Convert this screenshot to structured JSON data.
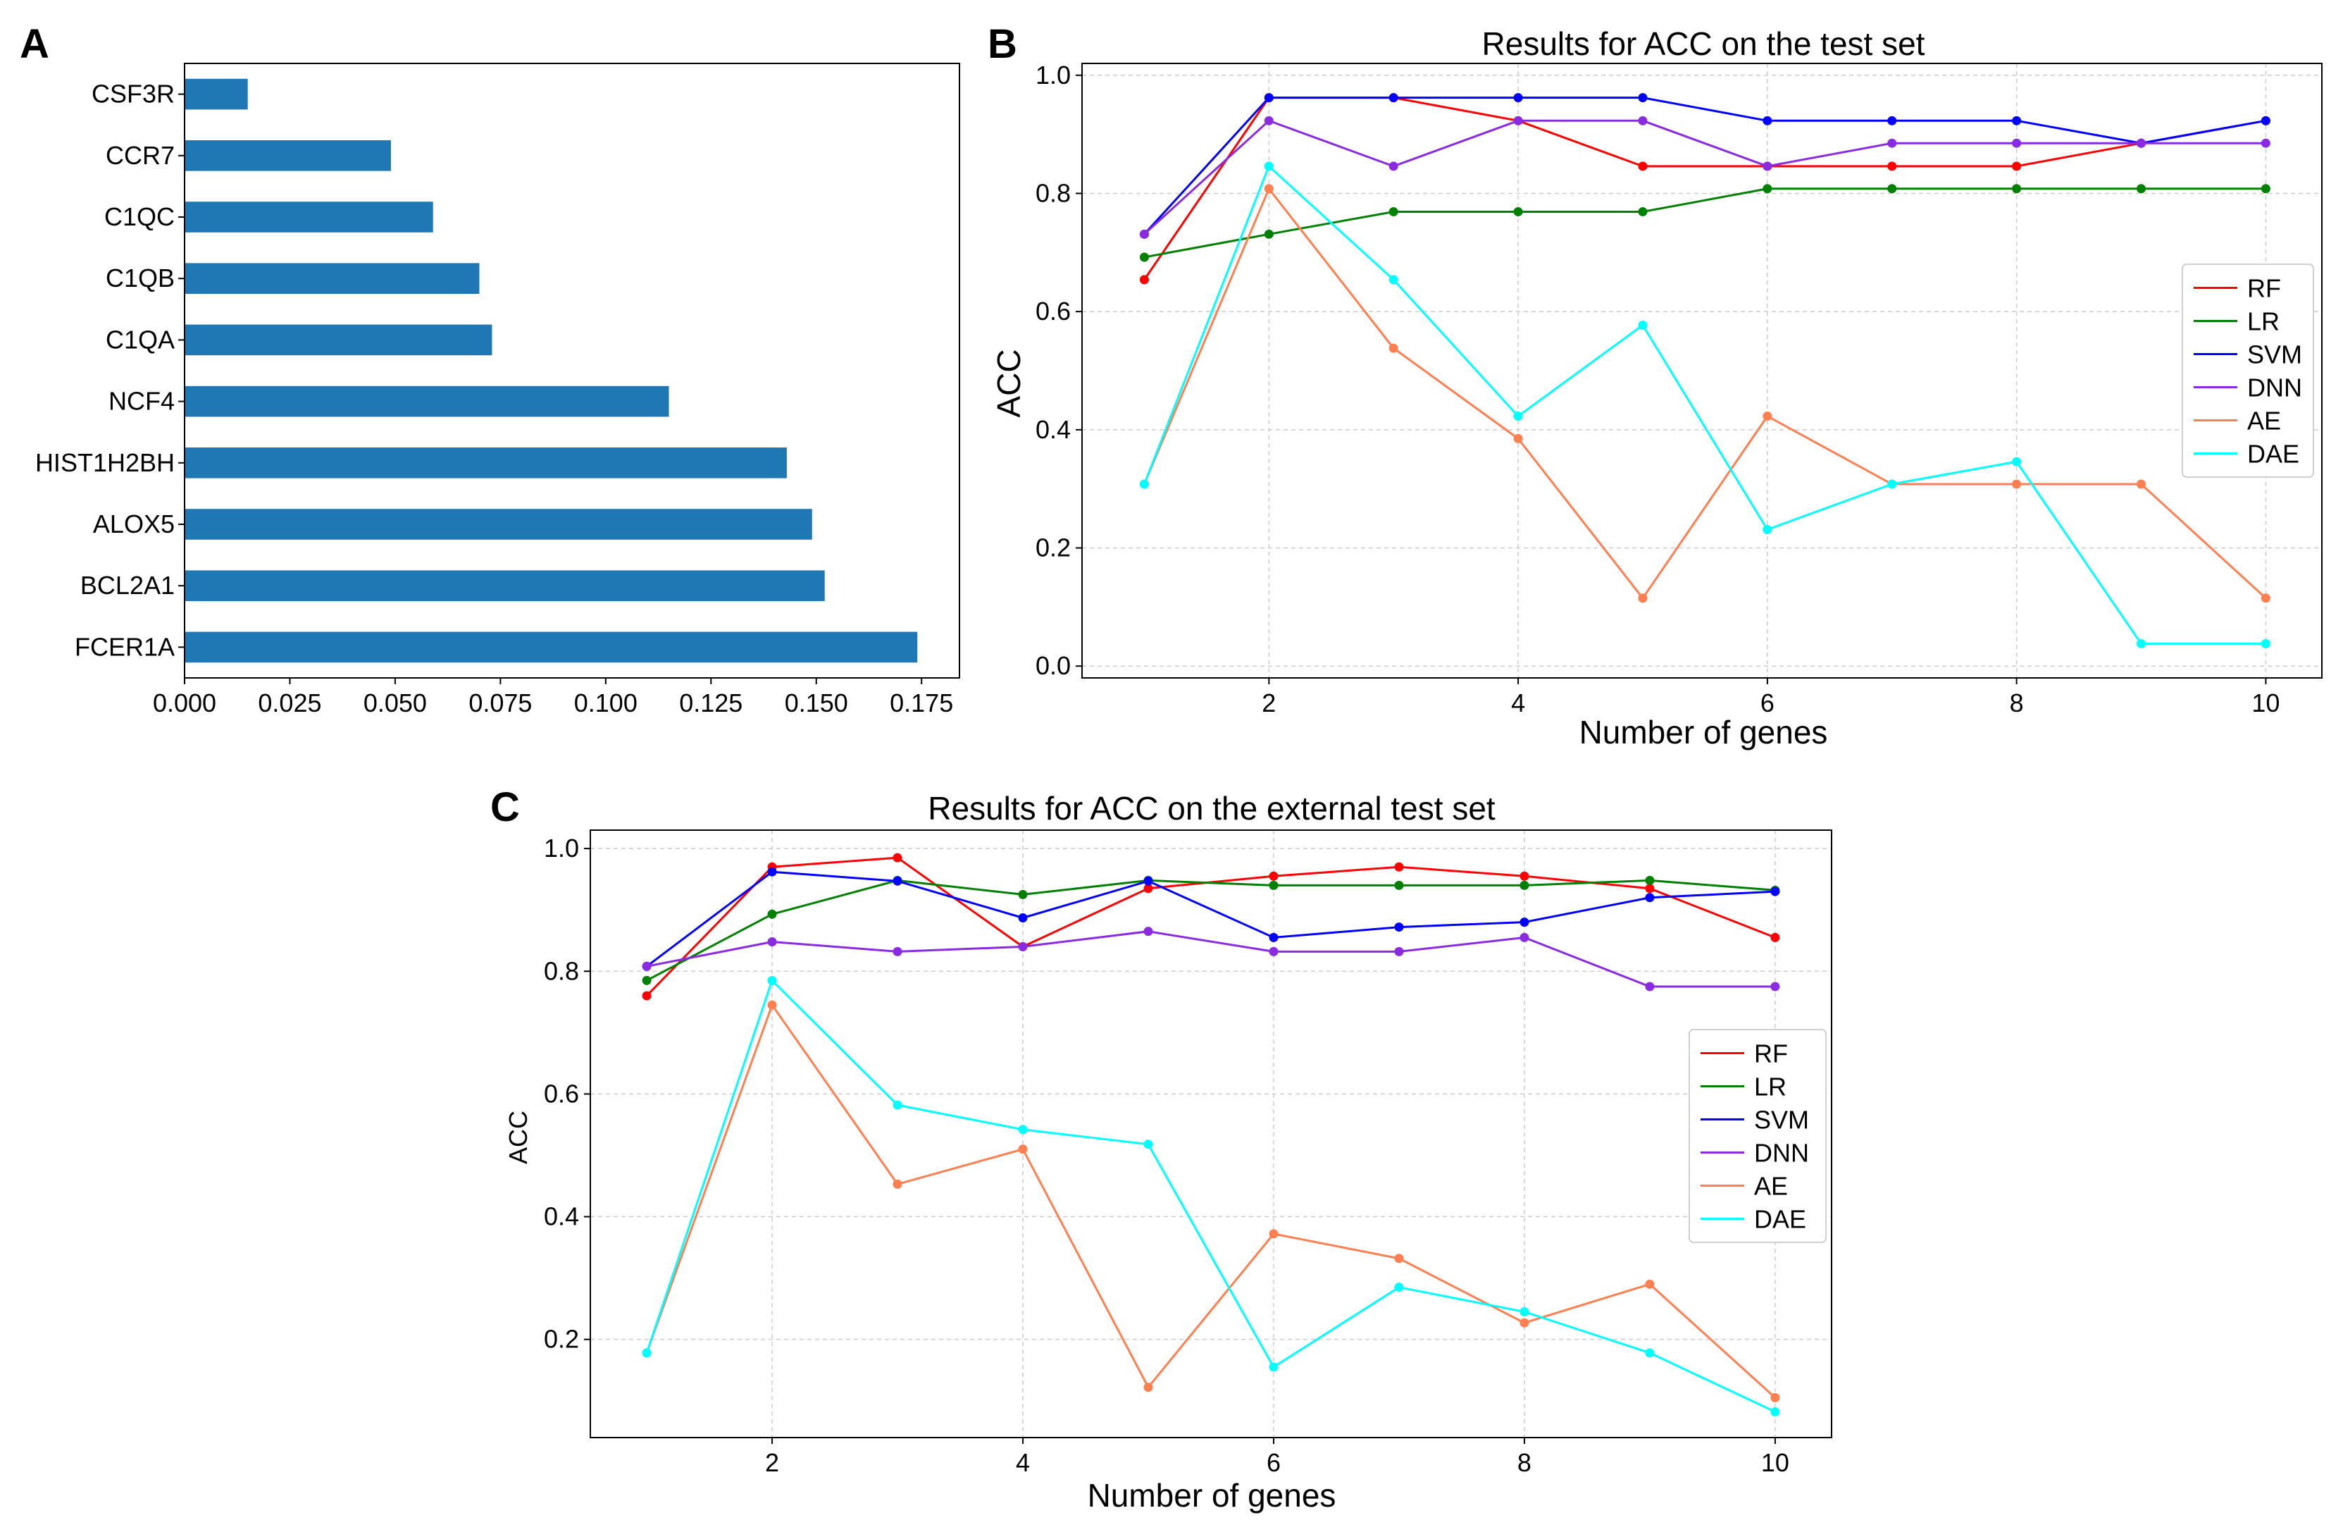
{
  "panels": {
    "a": "A",
    "b": "B",
    "c": "C"
  },
  "chart_data": [
    {
      "panel": "A",
      "type": "bar",
      "orientation": "horizontal",
      "title": "",
      "xlabel": "",
      "ylabel": "",
      "categories": [
        "CSF3R",
        "CCR7",
        "C1QC",
        "C1QB",
        "C1QA",
        "NCF4",
        "HIST1H2BH",
        "ALOX5",
        "BCL2A1",
        "FCER1A"
      ],
      "values": [
        0.015,
        0.049,
        0.059,
        0.07,
        0.073,
        0.115,
        0.143,
        0.149,
        0.152,
        0.174
      ],
      "xlim": [
        0,
        0.184
      ],
      "xticks": [
        "0.000",
        "0.025",
        "0.050",
        "0.075",
        "0.100",
        "0.125",
        "0.150",
        "0.175"
      ],
      "grid": false,
      "color": "#1f77b4"
    },
    {
      "panel": "B",
      "type": "line",
      "title": "Results for ACC on the test set",
      "xlabel": "Number of genes",
      "ylabel": "ACC",
      "x": [
        1,
        2,
        3,
        4,
        5,
        6,
        7,
        8,
        9,
        10
      ],
      "xlim": [
        0.5,
        10.45
      ],
      "ylim": [
        -0.02,
        1.02
      ],
      "xticks": [
        "2",
        "4",
        "6",
        "8",
        "10"
      ],
      "yticks": [
        "0.0",
        "0.2",
        "0.4",
        "0.6",
        "0.8",
        "1.0"
      ],
      "grid": true,
      "legend_position": "center-right",
      "series": [
        {
          "name": "RF",
          "color": "#ff0000",
          "values": [
            0.654,
            0.962,
            0.962,
            0.923,
            0.846,
            0.846,
            0.846,
            0.846,
            0.885,
            0.923
          ]
        },
        {
          "name": "LR",
          "color": "#008000",
          "values": [
            0.692,
            0.731,
            0.769,
            0.769,
            0.769,
            0.808,
            0.808,
            0.808,
            0.808,
            0.808
          ]
        },
        {
          "name": "SVM",
          "color": "#0000ff",
          "values": [
            0.731,
            0.962,
            0.962,
            0.962,
            0.962,
            0.923,
            0.923,
            0.923,
            0.885,
            0.923
          ]
        },
        {
          "name": "DNN",
          "color": "#8a2be2",
          "values": [
            0.731,
            0.923,
            0.846,
            0.923,
            0.923,
            0.846,
            0.885,
            0.885,
            0.885,
            0.885
          ]
        },
        {
          "name": "AE",
          "color": "#ff7f50",
          "values": [
            0.308,
            0.808,
            0.538,
            0.385,
            0.115,
            0.423,
            0.308,
            0.308,
            0.308,
            0.115
          ]
        },
        {
          "name": "DAE",
          "color": "#00ffff",
          "values": [
            0.308,
            0.846,
            0.654,
            0.423,
            0.577,
            0.231,
            0.308,
            0.346,
            0.038,
            0.038
          ]
        }
      ]
    },
    {
      "panel": "C",
      "type": "line",
      "title": "Results for ACC on the external test set",
      "xlabel": "Number of genes",
      "ylabel": "ACC",
      "x": [
        1,
        2,
        3,
        4,
        5,
        6,
        7,
        8,
        9,
        10
      ],
      "xlim": [
        0.55,
        10.45
      ],
      "ylim": [
        0.04,
        1.03
      ],
      "xticks": [
        "2",
        "4",
        "6",
        "8",
        "10"
      ],
      "yticks": [
        "0.2",
        "0.4",
        "0.6",
        "0.8",
        "1.0"
      ],
      "grid": true,
      "legend_position": "center-right",
      "series": [
        {
          "name": "RF",
          "color": "#ff0000",
          "values": [
            0.76,
            0.97,
            0.985,
            0.84,
            0.935,
            0.955,
            0.97,
            0.955,
            0.935,
            0.855
          ]
        },
        {
          "name": "LR",
          "color": "#008000",
          "values": [
            0.785,
            0.893,
            0.948,
            0.925,
            0.948,
            0.94,
            0.94,
            0.94,
            0.948,
            0.932
          ]
        },
        {
          "name": "SVM",
          "color": "#0000ff",
          "values": [
            0.808,
            0.962,
            0.947,
            0.887,
            0.947,
            0.855,
            0.872,
            0.88,
            0.92,
            0.93
          ]
        },
        {
          "name": "DNN",
          "color": "#8a2be2",
          "values": [
            0.808,
            0.848,
            0.832,
            0.84,
            0.865,
            0.832,
            0.832,
            0.855,
            0.775,
            0.775
          ]
        },
        {
          "name": "AE",
          "color": "#ff7f50",
          "values": [
            0.178,
            0.745,
            0.453,
            0.51,
            0.122,
            0.372,
            0.332,
            0.227,
            0.29,
            0.105
          ]
        },
        {
          "name": "DAE",
          "color": "#00ffff",
          "values": [
            0.178,
            0.785,
            0.582,
            0.542,
            0.518,
            0.155,
            0.285,
            0.245,
            0.178,
            0.082
          ]
        }
      ]
    }
  ]
}
